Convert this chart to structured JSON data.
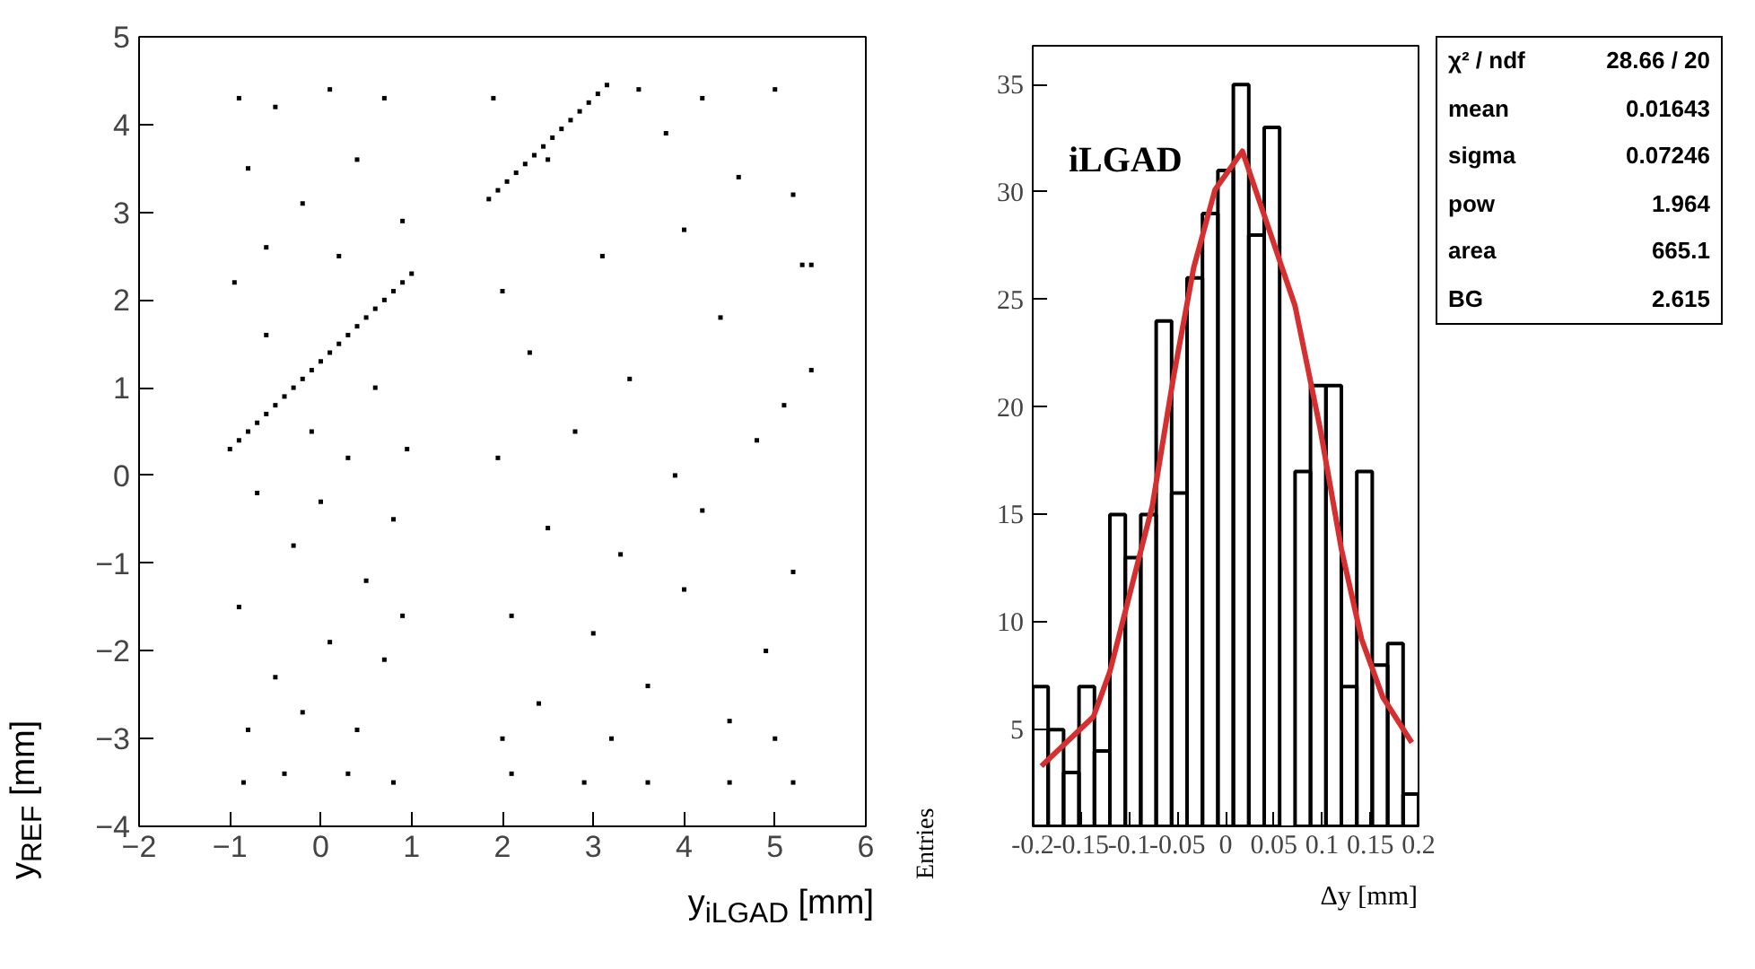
{
  "chart_data": [
    {
      "type": "scatter",
      "xlabel": "y$_{iLGAD}$ [mm]",
      "ylabel": "y$_{REF}$ [mm]",
      "color": "#000000",
      "marker": "square",
      "grid": false,
      "xlim": [
        -2,
        6
      ],
      "ylim": [
        -4,
        5
      ],
      "xticks": [
        {
          "value": -2,
          "label": "−2"
        },
        {
          "value": -1,
          "label": "−1"
        },
        0,
        1,
        2,
        3,
        4,
        5,
        6
      ],
      "yticks": [
        {
          "value": -4,
          "label": "−4"
        },
        {
          "value": -3,
          "label": "−3"
        },
        {
          "value": -2,
          "label": "−2"
        },
        {
          "value": -1,
          "label": "−1"
        },
        0,
        1,
        2,
        3,
        4,
        5
      ],
      "x": [
        -1.0,
        -0.9,
        -0.8,
        -0.7,
        -0.6,
        -0.5,
        -0.4,
        -0.3,
        -0.2,
        -0.1,
        0.0,
        0.1,
        0.2,
        0.3,
        0.4,
        0.5,
        0.6,
        0.7,
        0.8,
        0.9,
        1.0,
        1.85,
        1.95,
        2.05,
        2.15,
        2.25,
        2.35,
        2.45,
        2.55,
        2.65,
        2.75,
        2.85,
        2.95,
        3.05,
        3.15,
        -0.9,
        -0.5,
        0.1,
        0.7,
        -0.8,
        -0.2,
        0.4,
        0.9,
        -0.95,
        -0.6,
        0.2,
        0.6,
        0.3,
        -0.7,
        0.8,
        -0.3,
        0.5,
        -0.9,
        0.1,
        -0.5,
        0.7,
        -0.2,
        0.4,
        -0.8,
        0.9,
        -0.1,
        0.0,
        -0.6,
        0.95,
        -0.4,
        0.3,
        -0.85,
        0.8,
        1.9,
        3.5,
        4.2,
        5.0,
        2.5,
        3.8,
        4.6,
        5.2,
        2.0,
        3.1,
        4.0,
        5.3,
        2.3,
        3.4,
        4.4,
        5.1,
        1.95,
        2.8,
        3.9,
        4.8,
        2.5,
        3.3,
        4.2,
        5.2,
        2.1,
        3.0,
        4.0,
        4.9,
        2.4,
        3.6,
        4.5,
        5.0,
        2.0,
        3.2,
        2.1,
        2.9,
        3.6,
        4.5,
        5.2,
        5.4,
        5.4
      ],
      "values": [
        0.3,
        0.4,
        0.5,
        0.6,
        0.7,
        0.8,
        0.9,
        1.0,
        1.1,
        1.2,
        1.3,
        1.4,
        1.5,
        1.6,
        1.7,
        1.8,
        1.9,
        2.0,
        2.1,
        2.2,
        2.3,
        3.15,
        3.25,
        3.35,
        3.45,
        3.55,
        3.65,
        3.75,
        3.85,
        3.95,
        4.05,
        4.15,
        4.25,
        4.35,
        4.45,
        4.3,
        4.2,
        4.4,
        4.3,
        3.5,
        3.1,
        3.6,
        2.9,
        2.2,
        2.6,
        2.5,
        1.0,
        0.2,
        -0.2,
        -0.5,
        -0.8,
        -1.2,
        -1.5,
        -1.9,
        -2.3,
        -2.1,
        -2.7,
        -2.9,
        -2.9,
        -1.6,
        0.5,
        -0.3,
        1.6,
        0.3,
        -3.4,
        -3.4,
        -3.5,
        -3.5,
        4.3,
        4.4,
        4.3,
        4.4,
        3.6,
        3.9,
        3.4,
        3.2,
        2.1,
        2.5,
        2.8,
        2.4,
        1.4,
        1.1,
        1.8,
        0.8,
        0.2,
        0.5,
        0.0,
        0.4,
        -0.6,
        -0.9,
        -0.4,
        -1.1,
        -1.6,
        -1.8,
        -1.3,
        -2.0,
        -2.6,
        -2.4,
        -2.8,
        -3.0,
        -3.0,
        -3.0,
        -3.4,
        -3.5,
        -3.5,
        -3.5,
        -3.5,
        2.4,
        1.2
      ]
    },
    {
      "type": "histogram",
      "xlabel": "Δy [mm]",
      "ylabel": "Entries",
      "grid": false,
      "xlim": [
        -0.2,
        0.2
      ],
      "ylim": [
        0.5,
        36.8
      ],
      "xticks": [
        -0.2,
        -0.15,
        -0.1,
        -0.05,
        0,
        0.05,
        0.1,
        0.15,
        0.2
      ],
      "yticks": [
        5,
        10,
        15,
        20,
        25,
        30,
        35
      ],
      "series": [
        {
          "type": "histogram",
          "color": "#000000",
          "bins": [
            -0.2,
            -0.184,
            -0.168,
            -0.152,
            -0.136,
            -0.12,
            -0.104,
            -0.088,
            -0.072,
            -0.056,
            -0.04,
            -0.024,
            -0.008,
            0.008,
            0.024,
            0.04,
            0.056,
            0.072,
            0.088,
            0.104,
            0.12,
            0.136,
            0.152,
            0.168,
            0.184,
            0.2
          ],
          "values": [
            7,
            5,
            3,
            7,
            4,
            15,
            13,
            15,
            24,
            16,
            26,
            29,
            31,
            35,
            28,
            33,
            null,
            17,
            21,
            21,
            7,
            17,
            8,
            9,
            2
          ]
        },
        {
          "type": "line",
          "color": "#d62f2f",
          "x": [
            -0.191,
            -0.137,
            -0.12,
            -0.076,
            -0.054,
            -0.033,
            -0.011,
            0.0174,
            0.072,
            0.098,
            0.12,
            0.141,
            0.163,
            0.193
          ],
          "values": [
            3.3,
            5.6,
            7.7,
            15.4,
            21.4,
            26.5,
            30.1,
            31.9,
            24.7,
            19.0,
            13.4,
            9.2,
            6.5,
            4.4
          ]
        }
      ],
      "annotations": [
        "iLGAD",
        "χ² / ndf",
        "28.66 / 20",
        "mean",
        "0.01643",
        "sigma",
        "0.07246",
        "pow",
        "1.964",
        "area",
        "665.1",
        "BG",
        "2.615"
      ]
    }
  ]
}
